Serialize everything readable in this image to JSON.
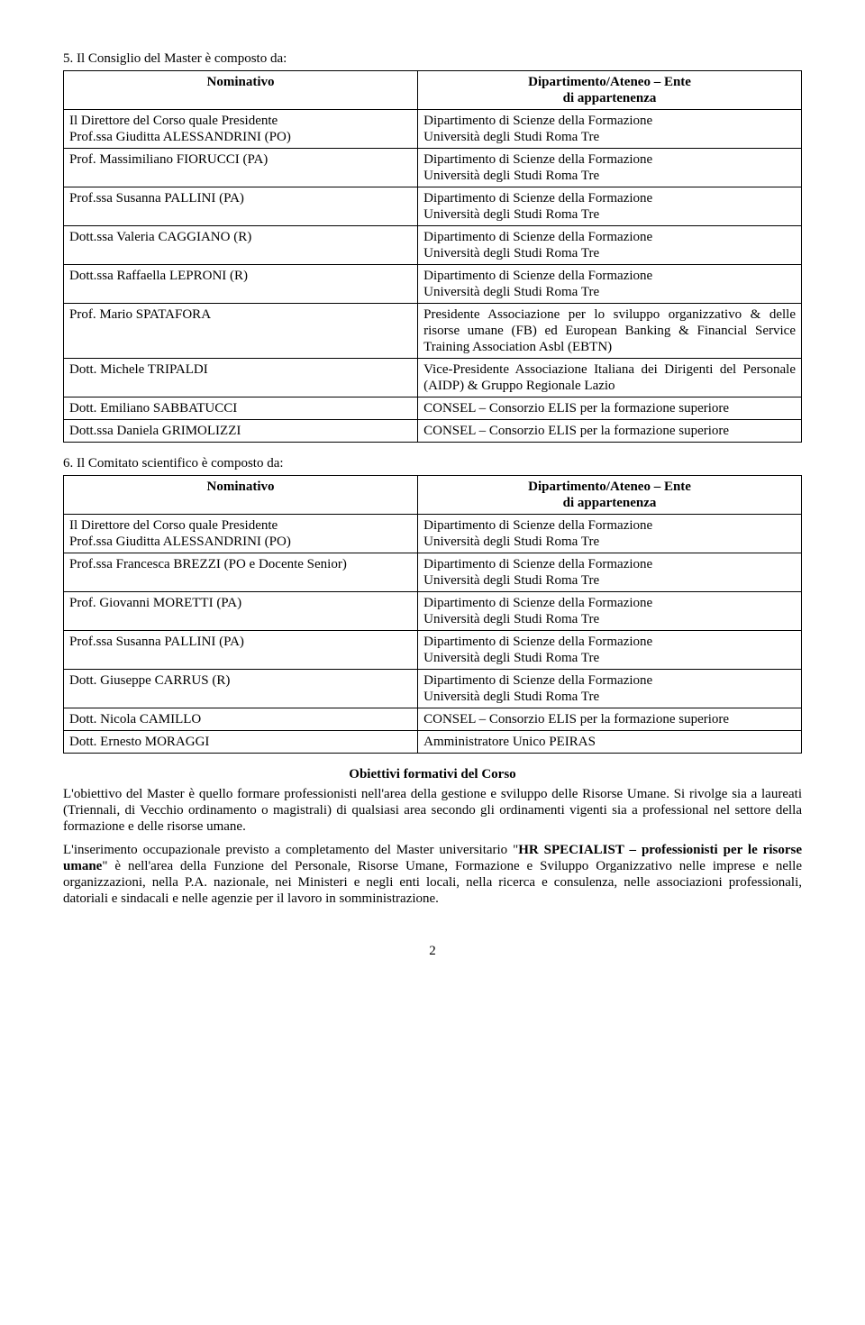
{
  "section5": {
    "heading": "5. Il Consiglio del Master è composto da:",
    "col1_header": "Nominativo",
    "col2_header_line1": "Dipartimento/Ateneo – Ente",
    "col2_header_line2": "di appartenenza",
    "rows": [
      {
        "left": "Il Direttore del Corso quale Presidente\nProf.ssa Giuditta  ALESSANDRINI (PO)",
        "right": "Dipartimento di Scienze della Formazione\nUniversità degli Studi Roma Tre"
      },
      {
        "left": "Prof. Massimiliano  FIORUCCI (PA)",
        "right": "Dipartimento di Scienze della Formazione\nUniversità degli Studi Roma Tre"
      },
      {
        "left": "Prof.ssa Susanna  PALLINI (PA)",
        "right": "Dipartimento di Scienze della Formazione\nUniversità degli Studi Roma Tre"
      },
      {
        "left": "Dott.ssa Valeria  CAGGIANO (R)",
        "right": "Dipartimento di Scienze della Formazione\nUniversità degli Studi Roma Tre"
      },
      {
        "left": "Dott.ssa Raffaella  LEPRONI (R)",
        "right": "Dipartimento di Scienze della Formazione\nUniversità degli Studi Roma Tre"
      },
      {
        "left": "Prof. Mario SPATAFORA",
        "right": "Presidente Associazione per lo sviluppo organizzativo & delle risorse umane (FB) ed European Banking & Financial Service Training Association Asbl (EBTN)"
      },
      {
        "left": "Dott. Michele  TRIPALDI",
        "right": "Vice-Presidente Associazione Italiana dei Dirigenti del Personale (AIDP) & Gruppo Regionale Lazio"
      },
      {
        "left": "Dott. Emiliano  SABBATUCCI",
        "right": "CONSEL – Consorzio ELIS per la formazione superiore"
      },
      {
        "left": "Dott.ssa Daniela  GRIMOLIZZI",
        "right": "CONSEL – Consorzio ELIS per la formazione superiore"
      }
    ]
  },
  "section6": {
    "heading": "6. Il Comitato scientifico è composto da:",
    "col1_header": "Nominativo",
    "col2_header_line1": "Dipartimento/Ateneo – Ente",
    "col2_header_line2": "di appartenenza",
    "rows": [
      {
        "left": "Il Direttore del Corso quale Presidente\nProf.ssa Giuditta  ALESSANDRINI (PO)",
        "right": "Dipartimento di Scienze della Formazione\nUniversità degli Studi Roma Tre"
      },
      {
        "left": "Prof.ssa Francesca  BREZZI (PO e Docente Senior)",
        "right": "Dipartimento di Scienze della Formazione\nUniversità degli Studi Roma Tre"
      },
      {
        "left": "Prof. Giovanni MORETTI (PA)",
        "right": "Dipartimento di Scienze della Formazione\nUniversità degli Studi Roma Tre"
      },
      {
        "left": "Prof.ssa Susanna  PALLINI (PA)",
        "right": "Dipartimento di Scienze della Formazione\nUniversità degli Studi Roma Tre"
      },
      {
        "left": "Dott. Giuseppe  CARRUS (R)",
        "right": "Dipartimento di Scienze della Formazione\nUniversità degli Studi Roma Tre"
      },
      {
        "left": "Dott. Nicola  CAMILLO",
        "right": "CONSEL – Consorzio ELIS per la formazione superiore"
      },
      {
        "left": "Dott. Ernesto  MORAGGI",
        "right": "Amministratore Unico PEIRAS"
      }
    ]
  },
  "objectives": {
    "title": "Obiettivi formativi del Corso",
    "para1": "L'obiettivo del Master è quello formare professionisti nell'area della gestione e sviluppo delle Risorse Umane. Si rivolge sia a laureati (Triennali, di Vecchio ordinamento o magistrali) di qualsiasi area secondo gli ordinamenti vigenti sia a professional nel settore della formazione e delle risorse umane.",
    "para2_prefix": "L'inserimento occupazionale previsto a completamento del Master universitario \"",
    "para2_bold": "HR SPECIALIST – professionisti per le risorse umane",
    "para2_suffix": "\" è nell'area della Funzione del Personale, Risorse Umane, Formazione e Sviluppo Organizzativo nelle imprese e nelle organizzazioni, nella P.A. nazionale, nei Ministeri e negli enti locali, nella ricerca e consulenza, nelle associazioni professionali, datoriali e sindacali e nelle agenzie per il lavoro in somministrazione."
  },
  "page_number": "2"
}
